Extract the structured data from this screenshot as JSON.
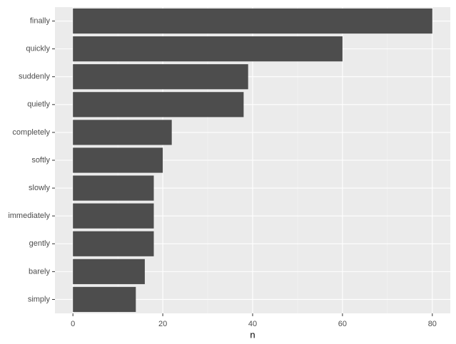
{
  "chart_data": {
    "type": "bar",
    "orientation": "horizontal",
    "categories": [
      "finally",
      "quickly",
      "suddenly",
      "quietly",
      "completely",
      "softly",
      "slowly",
      "immediately",
      "gently",
      "barely",
      "simply"
    ],
    "values": [
      80,
      60,
      39,
      38,
      22,
      20,
      18,
      18,
      18,
      16,
      14
    ],
    "color": "#4d4d4d",
    "x_label": "n",
    "xlim": [
      -4,
      84
    ],
    "xticks": [
      0,
      20,
      40,
      60,
      80
    ],
    "grid": true
  }
}
